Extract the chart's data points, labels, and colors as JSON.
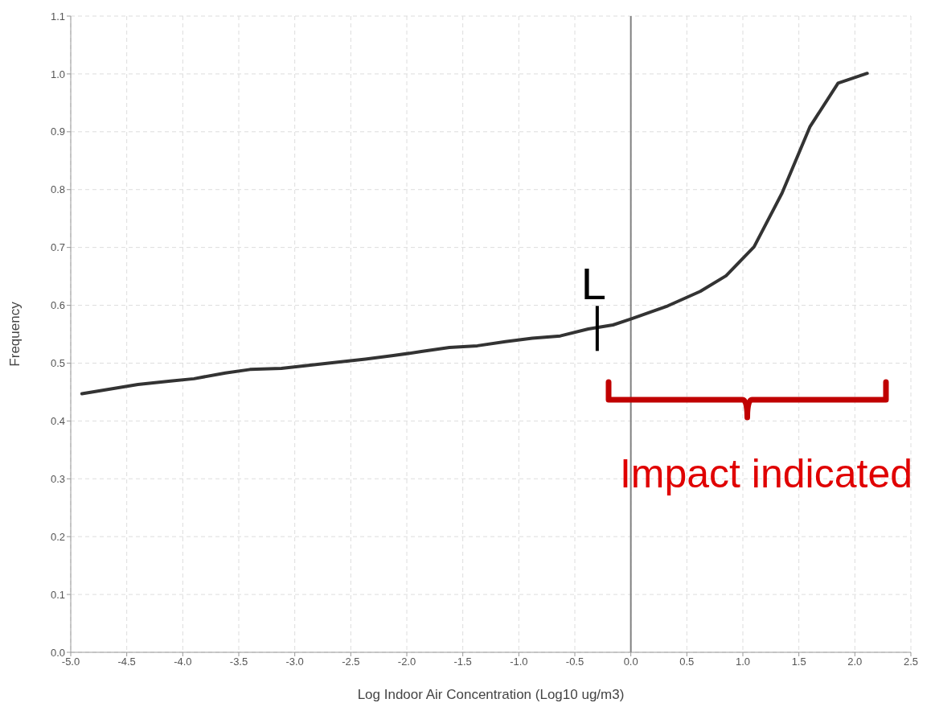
{
  "chart_data": {
    "type": "line",
    "xlabel": "Log Indoor Air Concentration (Log10 ug/m3)",
    "ylabel": "Frequency",
    "x": [
      -4.9,
      -4.4,
      -4.11,
      -3.9,
      -3.62,
      -3.4,
      -3.12,
      -2.65,
      -2.37,
      -2.12,
      -1.87,
      -1.62,
      -1.37,
      -1.12,
      -0.88,
      -0.63,
      -0.38,
      -0.16,
      0.01,
      0.33,
      0.62,
      0.85,
      1.1,
      1.35,
      1.6,
      1.85,
      2.11
    ],
    "series": [
      {
        "color": "#333333",
        "values": [
          0.447,
          0.463,
          0.469,
          0.473,
          0.483,
          0.489,
          0.491,
          0.501,
          0.507,
          0.513,
          0.52,
          0.527,
          0.53,
          0.537,
          0.543,
          0.547,
          0.559,
          0.566,
          0.577,
          0.599,
          0.624,
          0.651,
          0.701,
          0.794,
          0.909,
          0.984,
          1.001
        ]
      }
    ],
    "xlim": [
      -5.0,
      2.5
    ],
    "xticks": [
      {
        "value": -5,
        "label": "-5.0"
      },
      {
        "value": -4.5,
        "label": "-4.5"
      },
      {
        "value": -4,
        "label": "-4.0"
      },
      {
        "value": -3.5,
        "label": "-3.5"
      },
      {
        "value": -3,
        "label": "-3.0"
      },
      {
        "value": -2.5,
        "label": "-2.5"
      },
      {
        "value": -2,
        "label": "-2.0"
      },
      {
        "value": -1.5,
        "label": "-1.5"
      },
      {
        "value": -1,
        "label": "-1.0"
      },
      {
        "value": -0.5,
        "label": "-0.5"
      },
      {
        "value": 0,
        "label": "0.0"
      },
      {
        "value": 0.5,
        "label": "0.5"
      },
      {
        "value": 1,
        "label": "1.0"
      },
      {
        "value": 1.5,
        "label": "1.5"
      },
      {
        "value": 2,
        "label": "2.0"
      },
      {
        "value": 2.5,
        "label": "2.5"
      }
    ],
    "ylim": [
      0,
      1.1
    ],
    "yticks": [
      {
        "value": 0,
        "label": "0.0"
      },
      {
        "value": 0.1,
        "label": "0.1"
      },
      {
        "value": 0.2,
        "label": "0.2"
      },
      {
        "value": 0.3,
        "label": "0.3"
      },
      {
        "value": 0.4,
        "label": "0.4"
      },
      {
        "value": 0.5,
        "label": "0.5"
      },
      {
        "value": 0.6,
        "label": "0.6"
      },
      {
        "value": 0.7,
        "label": "0.7"
      },
      {
        "value": 0.8,
        "label": "0.8"
      },
      {
        "value": 0.9,
        "label": "0.9"
      },
      {
        "value": 1,
        "label": "1.0"
      },
      {
        "value": 1.1,
        "label": "1.1"
      }
    ],
    "grid": true,
    "marker": "none",
    "line_style": "solid",
    "ref_lines": [
      {
        "axis": "x",
        "value": 0,
        "color": "#808080"
      }
    ],
    "annotations": [
      {
        "text": "L",
        "x": -0.3,
        "y": 0.56
      },
      "Impact indicated"
    ]
  }
}
